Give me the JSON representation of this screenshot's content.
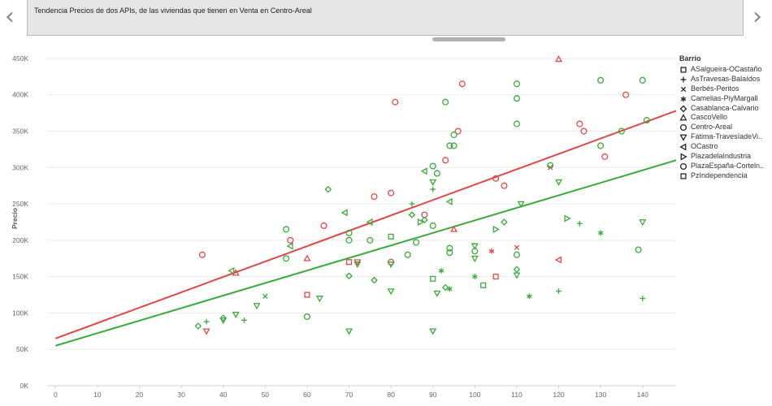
{
  "nav": {
    "prev_icon": "chevron-left-icon",
    "next_icon": "chevron-right-icon",
    "prev": "‹",
    "next": "›"
  },
  "story": {
    "caption": "Tendencia Precios de dos APIs, de las viviendas que tienen en Venta en Centro-Areal"
  },
  "colors": {
    "red": "#e04848",
    "green": "#3aaa3a",
    "grid": "#ececec",
    "axis_text": "#666666"
  },
  "chart_data": {
    "type": "scatter",
    "title": "Tendencia Precios de dos APIs, de las viviendas que tienen en Venta en Centro-Areal",
    "xlabel": "",
    "ylabel": "Precio",
    "xlim": [
      -2,
      148
    ],
    "ylim": [
      0,
      460000
    ],
    "x_ticks": [
      0,
      10,
      20,
      30,
      40,
      50,
      60,
      70,
      80,
      90,
      100,
      110,
      120,
      130,
      140
    ],
    "y_ticks": [
      0,
      50000,
      100000,
      150000,
      200000,
      250000,
      300000,
      350000,
      400000,
      450000
    ],
    "y_tick_labels": [
      "0K",
      "50K",
      "100K",
      "150K",
      "200K",
      "250K",
      "300K",
      "350K",
      "400K",
      "450K"
    ],
    "grid": true,
    "legend": {
      "title": "Barrio",
      "position": "right",
      "entries": [
        {
          "name": "ASalgueira-OCastaño",
          "shape": "square"
        },
        {
          "name": "AsTravesas-Balaídos",
          "shape": "plus"
        },
        {
          "name": "Berbés-Peritos",
          "shape": "cross"
        },
        {
          "name": "Camelias-PiyMargall",
          "shape": "asterisk"
        },
        {
          "name": "Casablanca-Calvario",
          "shape": "diamond"
        },
        {
          "name": "CascoVello",
          "shape": "triangle-up"
        },
        {
          "name": "Centro-Areal",
          "shape": "circle"
        },
        {
          "name": "Fátima-TravesíadeVi..",
          "shape": "triangle-down"
        },
        {
          "name": "OCastro",
          "shape": "triangle-left"
        },
        {
          "name": "PlazadelaIndustria",
          "shape": "triangle-right"
        },
        {
          "name": "PlazaEspaña-Corteln..",
          "shape": "circle"
        },
        {
          "name": "PzIndependencia",
          "shape": "square"
        }
      ]
    },
    "trend_lines": [
      {
        "name": "trend-red",
        "color": "red",
        "x": [
          0,
          148
        ],
        "y": [
          65000,
          378000
        ]
      },
      {
        "name": "trend-green",
        "color": "green",
        "x": [
          0,
          148
        ],
        "y": [
          55000,
          310000
        ]
      }
    ],
    "series": [
      {
        "name": "red",
        "color": "red",
        "points": [
          {
            "x": 120,
            "y": 449000,
            "shape": "triangle-up"
          },
          {
            "x": 81,
            "y": 390000,
            "shape": "circle"
          },
          {
            "x": 97,
            "y": 415000,
            "shape": "circle"
          },
          {
            "x": 136,
            "y": 400000,
            "shape": "circle"
          },
          {
            "x": 125,
            "y": 360000,
            "shape": "circle"
          },
          {
            "x": 126,
            "y": 350000,
            "shape": "circle"
          },
          {
            "x": 96,
            "y": 350000,
            "shape": "circle"
          },
          {
            "x": 131,
            "y": 315000,
            "shape": "circle"
          },
          {
            "x": 93,
            "y": 310000,
            "shape": "circle"
          },
          {
            "x": 118,
            "y": 300000,
            "shape": "cross"
          },
          {
            "x": 105,
            "y": 285000,
            "shape": "circle"
          },
          {
            "x": 107,
            "y": 275000,
            "shape": "circle"
          },
          {
            "x": 80,
            "y": 265000,
            "shape": "circle"
          },
          {
            "x": 76,
            "y": 260000,
            "shape": "circle"
          },
          {
            "x": 88,
            "y": 235000,
            "shape": "circle"
          },
          {
            "x": 64,
            "y": 220000,
            "shape": "circle"
          },
          {
            "x": 95,
            "y": 215000,
            "shape": "triangle-up"
          },
          {
            "x": 56,
            "y": 200000,
            "shape": "circle"
          },
          {
            "x": 35,
            "y": 180000,
            "shape": "circle"
          },
          {
            "x": 60,
            "y": 175000,
            "shape": "triangle-up"
          },
          {
            "x": 110,
            "y": 190000,
            "shape": "cross"
          },
          {
            "x": 104,
            "y": 185000,
            "shape": "asterisk"
          },
          {
            "x": 120,
            "y": 173000,
            "shape": "triangle-left"
          },
          {
            "x": 70,
            "y": 170000,
            "shape": "square"
          },
          {
            "x": 80,
            "y": 170000,
            "shape": "circle"
          },
          {
            "x": 72,
            "y": 170000,
            "shape": "triangle-down"
          },
          {
            "x": 43,
            "y": 155000,
            "shape": "triangle-up"
          },
          {
            "x": 105,
            "y": 150000,
            "shape": "square"
          },
          {
            "x": 60,
            "y": 125000,
            "shape": "square"
          },
          {
            "x": 36,
            "y": 75000,
            "shape": "triangle-down"
          }
        ]
      },
      {
        "name": "green",
        "color": "green",
        "points": [
          {
            "x": 110,
            "y": 415000,
            "shape": "circle"
          },
          {
            "x": 140,
            "y": 420000,
            "shape": "circle"
          },
          {
            "x": 130,
            "y": 420000,
            "shape": "circle"
          },
          {
            "x": 110,
            "y": 395000,
            "shape": "circle"
          },
          {
            "x": 93,
            "y": 390000,
            "shape": "circle"
          },
          {
            "x": 141,
            "y": 365000,
            "shape": "circle"
          },
          {
            "x": 110,
            "y": 360000,
            "shape": "circle"
          },
          {
            "x": 135,
            "y": 350000,
            "shape": "circle"
          },
          {
            "x": 95,
            "y": 345000,
            "shape": "circle"
          },
          {
            "x": 94,
            "y": 330000,
            "shape": "circle"
          },
          {
            "x": 95,
            "y": 330000,
            "shape": "circle"
          },
          {
            "x": 130,
            "y": 330000,
            "shape": "circle"
          },
          {
            "x": 118,
            "y": 303000,
            "shape": "circle"
          },
          {
            "x": 90,
            "y": 302000,
            "shape": "circle"
          },
          {
            "x": 88,
            "y": 295000,
            "shape": "triangle-left"
          },
          {
            "x": 91,
            "y": 292000,
            "shape": "circle"
          },
          {
            "x": 90,
            "y": 280000,
            "shape": "triangle-down"
          },
          {
            "x": 120,
            "y": 280000,
            "shape": "triangle-down"
          },
          {
            "x": 65,
            "y": 270000,
            "shape": "diamond"
          },
          {
            "x": 90,
            "y": 270000,
            "shape": "plus"
          },
          {
            "x": 94,
            "y": 253000,
            "shape": "triangle-left"
          },
          {
            "x": 85,
            "y": 250000,
            "shape": "plus"
          },
          {
            "x": 111,
            "y": 250000,
            "shape": "triangle-down"
          },
          {
            "x": 69,
            "y": 238000,
            "shape": "triangle-left"
          },
          {
            "x": 85,
            "y": 235000,
            "shape": "diamond"
          },
          {
            "x": 122,
            "y": 230000,
            "shape": "triangle-right"
          },
          {
            "x": 88,
            "y": 228000,
            "shape": "diamond"
          },
          {
            "x": 75,
            "y": 225000,
            "shape": "triangle-left"
          },
          {
            "x": 107,
            "y": 225000,
            "shape": "diamond"
          },
          {
            "x": 87,
            "y": 225000,
            "shape": "triangle-right"
          },
          {
            "x": 140,
            "y": 225000,
            "shape": "triangle-down"
          },
          {
            "x": 125,
            "y": 223000,
            "shape": "plus"
          },
          {
            "x": 90,
            "y": 220000,
            "shape": "circle"
          },
          {
            "x": 55,
            "y": 215000,
            "shape": "circle"
          },
          {
            "x": 105,
            "y": 215000,
            "shape": "triangle-right"
          },
          {
            "x": 70,
            "y": 210000,
            "shape": "circle"
          },
          {
            "x": 130,
            "y": 210000,
            "shape": "asterisk"
          },
          {
            "x": 80,
            "y": 205000,
            "shape": "square"
          },
          {
            "x": 75,
            "y": 200000,
            "shape": "circle"
          },
          {
            "x": 70,
            "y": 200000,
            "shape": "circle"
          },
          {
            "x": 86,
            "y": 197000,
            "shape": "circle"
          },
          {
            "x": 56,
            "y": 192000,
            "shape": "triangle-left"
          },
          {
            "x": 100,
            "y": 192000,
            "shape": "triangle-down"
          },
          {
            "x": 94,
            "y": 189000,
            "shape": "circle"
          },
          {
            "x": 139,
            "y": 187000,
            "shape": "circle"
          },
          {
            "x": 100,
            "y": 185000,
            "shape": "circle"
          },
          {
            "x": 94,
            "y": 183000,
            "shape": "circle"
          },
          {
            "x": 84,
            "y": 180000,
            "shape": "circle"
          },
          {
            "x": 110,
            "y": 180000,
            "shape": "circle"
          },
          {
            "x": 100,
            "y": 175000,
            "shape": "triangle-down"
          },
          {
            "x": 55,
            "y": 175000,
            "shape": "circle"
          },
          {
            "x": 80,
            "y": 167000,
            "shape": "triangle-down"
          },
          {
            "x": 72,
            "y": 167000,
            "shape": "triangle-down"
          },
          {
            "x": 110,
            "y": 160000,
            "shape": "diamond"
          },
          {
            "x": 92,
            "y": 158000,
            "shape": "asterisk"
          },
          {
            "x": 42,
            "y": 158000,
            "shape": "triangle-left"
          },
          {
            "x": 110,
            "y": 152000,
            "shape": "triangle-down"
          },
          {
            "x": 70,
            "y": 151000,
            "shape": "diamond"
          },
          {
            "x": 100,
            "y": 150000,
            "shape": "asterisk"
          },
          {
            "x": 90,
            "y": 147000,
            "shape": "square"
          },
          {
            "x": 76,
            "y": 145000,
            "shape": "diamond"
          },
          {
            "x": 102,
            "y": 138000,
            "shape": "square"
          },
          {
            "x": 93,
            "y": 135000,
            "shape": "diamond"
          },
          {
            "x": 94,
            "y": 133000,
            "shape": "asterisk"
          },
          {
            "x": 80,
            "y": 130000,
            "shape": "triangle-down"
          },
          {
            "x": 120,
            "y": 130000,
            "shape": "plus"
          },
          {
            "x": 91,
            "y": 127000,
            "shape": "triangle-down"
          },
          {
            "x": 113,
            "y": 123000,
            "shape": "asterisk"
          },
          {
            "x": 50,
            "y": 123000,
            "shape": "cross"
          },
          {
            "x": 63,
            "y": 120000,
            "shape": "triangle-down"
          },
          {
            "x": 140,
            "y": 120000,
            "shape": "plus"
          },
          {
            "x": 48,
            "y": 110000,
            "shape": "triangle-down"
          },
          {
            "x": 43,
            "y": 98000,
            "shape": "triangle-down"
          },
          {
            "x": 60,
            "y": 95000,
            "shape": "circle"
          },
          {
            "x": 40,
            "y": 93000,
            "shape": "diamond"
          },
          {
            "x": 45,
            "y": 90000,
            "shape": "plus"
          },
          {
            "x": 40,
            "y": 90000,
            "shape": "triangle-down"
          },
          {
            "x": 36,
            "y": 88000,
            "shape": "plus"
          },
          {
            "x": 34,
            "y": 82000,
            "shape": "diamond"
          },
          {
            "x": 70,
            "y": 75000,
            "shape": "triangle-down"
          },
          {
            "x": 90,
            "y": 75000,
            "shape": "triangle-down"
          }
        ]
      }
    ]
  }
}
